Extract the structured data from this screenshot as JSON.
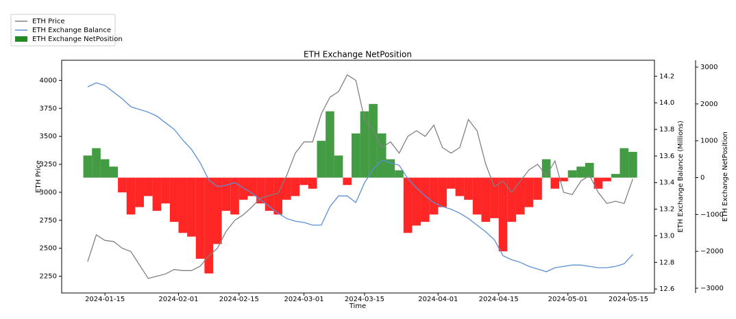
{
  "chart_data": {
    "type": "line_bar",
    "title": "ETH Exchange NetPosition",
    "xlabel": "Time",
    "ylabel": "ETH Price",
    "y2label": "ETH Exchange Balance (Millions)",
    "y3label": "ETH Exchange NetPosition",
    "legend": "upper left",
    "x": [
      "2024-01-11",
      "2024-01-13",
      "2024-01-15",
      "2024-01-17",
      "2024-01-19",
      "2024-01-21",
      "2024-01-23",
      "2024-01-25",
      "2024-01-27",
      "2024-01-29",
      "2024-01-31",
      "2024-02-02",
      "2024-02-04",
      "2024-02-06",
      "2024-02-08",
      "2024-02-10",
      "2024-02-12",
      "2024-02-14",
      "2024-02-16",
      "2024-02-18",
      "2024-02-20",
      "2024-02-22",
      "2024-02-24",
      "2024-02-26",
      "2024-02-28",
      "2024-03-01",
      "2024-03-03",
      "2024-03-05",
      "2024-03-07",
      "2024-03-09",
      "2024-03-11",
      "2024-03-13",
      "2024-03-15",
      "2024-03-17",
      "2024-03-19",
      "2024-03-21",
      "2024-03-23",
      "2024-03-25",
      "2024-03-27",
      "2024-03-29",
      "2024-03-31",
      "2024-04-02",
      "2024-04-04",
      "2024-04-06",
      "2024-04-08",
      "2024-04-10",
      "2024-04-12",
      "2024-04-14",
      "2024-04-16",
      "2024-04-18",
      "2024-04-20",
      "2024-04-22",
      "2024-04-24",
      "2024-04-26",
      "2024-04-28",
      "2024-04-30",
      "2024-05-02",
      "2024-05-04",
      "2024-05-06",
      "2024-05-08",
      "2024-05-10",
      "2024-05-12",
      "2024-05-14",
      "2024-05-16"
    ],
    "xlim": [
      "2024-01-05",
      "2024-05-21"
    ],
    "xticks": [
      "2024-01-15",
      "2024-02-01",
      "2024-02-15",
      "2024-03-01",
      "2024-03-15",
      "2024-04-01",
      "2024-04-15",
      "2024-05-01",
      "2024-05-15"
    ],
    "ylim": [
      2100,
      4180
    ],
    "yticks": [
      2250,
      2500,
      2750,
      3000,
      3250,
      3500,
      3750,
      4000
    ],
    "y2lim": [
      12.57,
      14.32
    ],
    "y2ticks": [
      12.6,
      12.8,
      {
        "value": 13.0,
        "label": "13.0"
      },
      13.2,
      13.4,
      13.6,
      13.8,
      {
        "value": 14.0,
        "label": "14.0"
      },
      14.2
    ],
    "y3lim": [
      -3130,
      3186
    ],
    "y3ticks": [
      {
        "value": -3000,
        "label": "−3000"
      },
      {
        "value": -2000,
        "label": "−2000"
      },
      {
        "value": -1000,
        "label": "−1000"
      },
      0,
      1000,
      2000,
      3000
    ],
    "negative_color": "#ff0000",
    "series": [
      {
        "name": "ETH Price",
        "kind": "line",
        "axis": "y",
        "color": "#808080",
        "values": [
          2380,
          2620,
          2570,
          2560,
          2500,
          2470,
          2350,
          2230,
          2250,
          2270,
          2310,
          2300,
          2300,
          2340,
          2430,
          2500,
          2650,
          2750,
          2800,
          2870,
          2950,
          2970,
          2990,
          3150,
          3350,
          3450,
          3450,
          3700,
          3850,
          3900,
          4050,
          4000,
          3650,
          3550,
          3400,
          3450,
          3350,
          3500,
          3550,
          3500,
          3600,
          3400,
          3350,
          3400,
          3650,
          3550,
          3250,
          3050,
          3100,
          3000,
          3100,
          3200,
          3250,
          3150,
          3280,
          3000,
          2980,
          3100,
          3150,
          3000,
          2900,
          2920,
          2900,
          3120
        ]
      },
      {
        "name": "ETH Exchange Balance",
        "kind": "line",
        "axis": "y2",
        "color": "#5b8fd6",
        "values": [
          14.12,
          14.15,
          14.13,
          14.08,
          14.03,
          13.97,
          13.95,
          13.93,
          13.9,
          13.85,
          13.8,
          13.72,
          13.65,
          13.55,
          13.42,
          13.37,
          13.38,
          13.4,
          13.36,
          13.32,
          13.27,
          13.22,
          13.17,
          13.13,
          13.11,
          13.1,
          13.08,
          13.08,
          13.22,
          13.3,
          13.3,
          13.25,
          13.4,
          13.5,
          13.57,
          13.55,
          13.53,
          13.43,
          13.36,
          13.3,
          13.25,
          13.22,
          13.2,
          13.17,
          13.13,
          13.08,
          13.03,
          12.97,
          12.85,
          12.82,
          12.8,
          12.77,
          12.75,
          12.73,
          12.76,
          12.77,
          12.78,
          12.78,
          12.77,
          12.76,
          12.76,
          12.77,
          12.79,
          12.86
        ]
      },
      {
        "name": "ETH Exchange NetPosition",
        "kind": "bar",
        "axis": "y3",
        "color": "#228b22",
        "values": [
          600,
          800,
          500,
          300,
          -400,
          -1000,
          -800,
          -500,
          -900,
          -700,
          -1200,
          -1500,
          -1600,
          -2200,
          -2600,
          -1800,
          -900,
          -1000,
          -600,
          -500,
          -700,
          -900,
          -1000,
          -600,
          -500,
          -200,
          -300,
          1000,
          1800,
          600,
          -200,
          1200,
          1800,
          2000,
          1200,
          500,
          200,
          -1500,
          -1300,
          -1200,
          -1000,
          -800,
          -300,
          -500,
          -600,
          -1000,
          -1200,
          -1100,
          -2000,
          -1200,
          -1000,
          -800,
          -600,
          500,
          -300,
          -100,
          200,
          300,
          400,
          -300,
          -100,
          100,
          800,
          700
        ]
      }
    ]
  }
}
